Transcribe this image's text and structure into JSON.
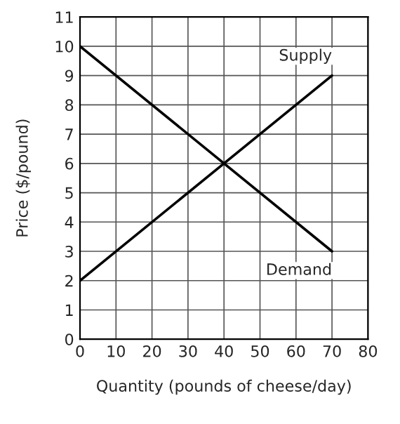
{
  "chart_data": {
    "type": "line",
    "xlabel": "Quantity (pounds of cheese/day)",
    "ylabel": "Price ($/pound)",
    "x": [
      0,
      70
    ],
    "series": [
      {
        "name": "Supply",
        "color": "#000000",
        "values": [
          2,
          9
        ]
      },
      {
        "name": "Demand",
        "color": "#000000",
        "values": [
          10,
          3
        ]
      }
    ],
    "xlim": [
      0,
      80
    ],
    "xticks": [
      0,
      10,
      20,
      30,
      40,
      50,
      60,
      70,
      80
    ],
    "ylim": [
      0,
      11
    ],
    "yticks": [
      0,
      1,
      2,
      3,
      4,
      5,
      6,
      7,
      8,
      9,
      10,
      11
    ],
    "grid": true,
    "marker": "none",
    "line_style": "solid",
    "legend": false
  }
}
